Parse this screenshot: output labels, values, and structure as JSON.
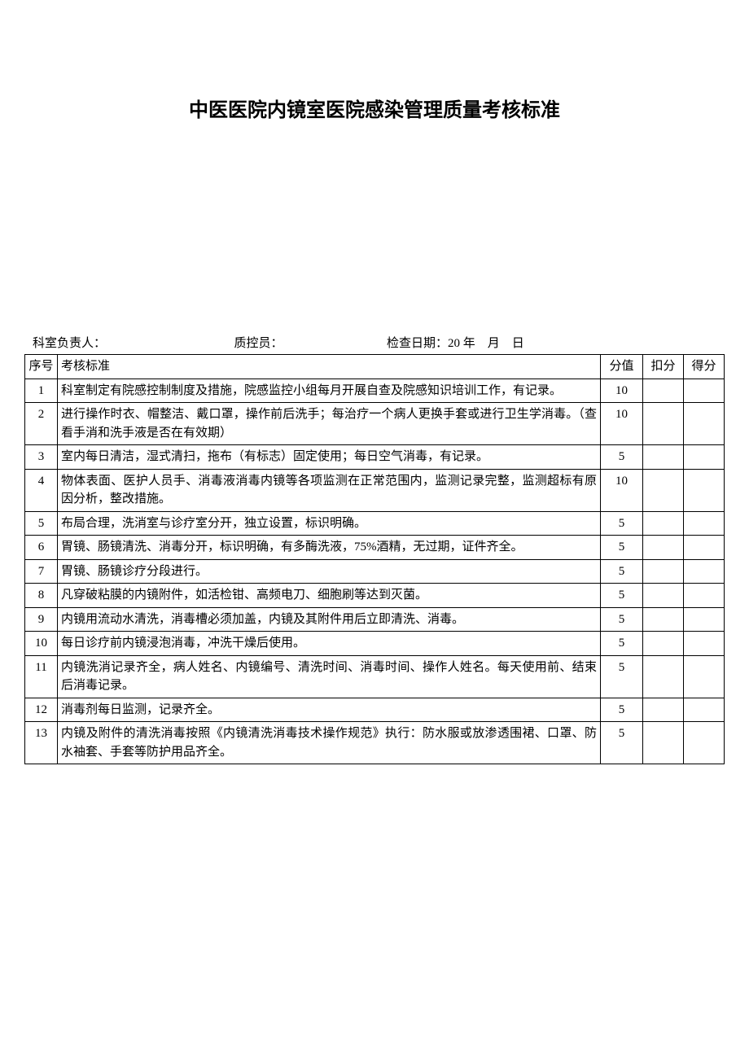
{
  "title": "中医医院内镜室医院感染管理质量考核标准",
  "meta": {
    "line": "科室负责人：　　　　　　　　　　　质控员：　　　　　　　　　检查日期：20 年　月　日"
  },
  "table": {
    "headers": {
      "seq": "序号",
      "standard": "考核标准",
      "score": "分值",
      "deduct": "扣分",
      "get": "得分"
    },
    "rows": [
      {
        "seq": "1",
        "standard": "科室制定有院感控制制度及措施，院感监控小组每月开展自查及院感知识培训工作，有记录。",
        "score": "10",
        "deduct": "",
        "get": ""
      },
      {
        "seq": "2",
        "standard": "进行操作时衣、帽整洁、戴口罩，操作前后洗手；每治疗一个病人更换手套或进行卫生学消毒。（查看手消和洗手液是否在有效期）",
        "score": "10",
        "deduct": "",
        "get": ""
      },
      {
        "seq": "3",
        "standard": "室内每日清洁，湿式清扫，拖布（有标志）固定使用；每日空气消毒，有记录。",
        "score": "5",
        "deduct": "",
        "get": ""
      },
      {
        "seq": "4",
        "standard": "物体表面、医护人员手、消毒液消毒内镜等各项监测在正常范围内，监测记录完整，监测超标有原因分析，整改措施。",
        "score": "10",
        "deduct": "",
        "get": ""
      },
      {
        "seq": "5",
        "standard": "布局合理，洗消室与诊疗室分开，独立设置，标识明确。",
        "score": "5",
        "deduct": "",
        "get": ""
      },
      {
        "seq": "6",
        "standard": "胃镜、肠镜清洗、消毒分开，标识明确，有多酶洗液，75%酒精，无过期，证件齐全。",
        "score": "5",
        "deduct": "",
        "get": ""
      },
      {
        "seq": "7",
        "standard": "胃镜、肠镜诊疗分段进行。",
        "score": "5",
        "deduct": "",
        "get": ""
      },
      {
        "seq": "8",
        "standard": "凡穿破粘膜的内镜附件，如活检钳、高频电刀、细胞刷等达到灭菌。",
        "score": "5",
        "deduct": "",
        "get": ""
      },
      {
        "seq": "9",
        "standard": "内镜用流动水清洗，消毒槽必须加盖，内镜及其附件用后立即清洗、消毒。",
        "score": "5",
        "deduct": "",
        "get": ""
      },
      {
        "seq": "10",
        "standard": "每日诊疗前内镜浸泡消毒，冲洗干燥后使用。",
        "score": "5",
        "deduct": "",
        "get": ""
      },
      {
        "seq": "11",
        "standard": "内镜洗消记录齐全，病人姓名、内镜编号、清洗时间、消毒时间、操作人姓名。每天使用前、结束后消毒记录。",
        "score": "5",
        "deduct": "",
        "get": ""
      },
      {
        "seq": "12",
        "standard": "消毒剂每日监测，记录齐全。",
        "score": "5",
        "deduct": "",
        "get": ""
      },
      {
        "seq": "13",
        "standard": "内镜及附件的清洗消毒按照《内镜清洗消毒技术操作规范》执行：防水服或放渗透围裙、口罩、防水袖套、手套等防护用品齐全。",
        "score": "5",
        "deduct": "",
        "get": ""
      }
    ]
  }
}
